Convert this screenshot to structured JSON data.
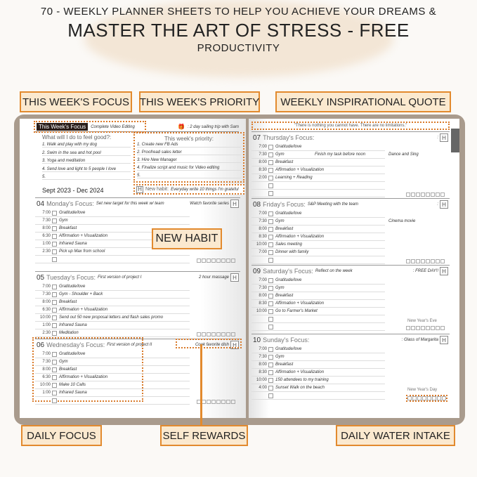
{
  "header": {
    "line1": "70 - WEEKLY PLANNER  SHEETS TO HELP YOU ACHIEVE YOUR DREAMS &",
    "line2": "MASTER THE ART OF STRESS - FREE",
    "line3": "PRODUCTIVITY"
  },
  "callouts": {
    "week_focus": "THIS WEEK'S FOCUS",
    "week_priority": "THIS WEEK'S PRIORITY",
    "quote": "WEEKLY INSPIRATIONAL QUOTE",
    "new_habit": "NEW HABIT",
    "daily_focus": "DAILY FOCUS",
    "self_rewards": "SELF REWARDS",
    "water": "DAILY WATER INTAKE"
  },
  "colors": {
    "accent": "#e28a2e",
    "callout_bg": "#fbe9cf",
    "cover": "#a99b8d"
  },
  "left_page": {
    "week_focus_label": "This Week's Focus",
    "week_focus_value": "Complete Video Editing",
    "week_reward": ": 2 day sailing trip with Sam",
    "feel_good_title": "What will I do to feel good?:",
    "feel_good": [
      "1. Walk and play with my dog",
      "2. Swim in the sea and hot pool",
      "3. Yoga and meditation",
      "4. Send love and light to 5 people I love",
      "5."
    ],
    "priority_title": "This week's priority:",
    "priorities": [
      "1. Create new FB Ads",
      "2. Proofread sales letter",
      "3. Hire New Manager",
      "4. Finalize script and music for Video editing",
      "5."
    ],
    "date_range": "Sept 2023 - Dec 2024",
    "habit_label": "New habit:",
    "habit_value": "Everyday write 10 things I'm grateful"
  },
  "quote": "\"There is nothing you cannot have. There are no limitations.\"",
  "habit_icon": "H",
  "gift_icon": "gift-icon",
  "days": [
    {
      "num": "04",
      "label": "Monday's Focus:",
      "focus": "Set new target for this week w/ team",
      "reward": "Watch favorite series",
      "entries": [
        [
          "7:00",
          "Gratitude/love"
        ],
        [
          "7:30",
          "Gym"
        ],
        [
          "8:00",
          "Breakfast"
        ],
        [
          "6:30",
          "Affirmation + Visualization"
        ],
        [
          "1:00",
          "Infrared Sauna"
        ],
        [
          "2:30",
          "Pick up Max from school"
        ],
        [
          "",
          ""
        ]
      ]
    },
    {
      "num": "05",
      "label": "Tuesday's Focus:",
      "focus": "First version of project I",
      "reward": "2 hour massage",
      "entries": [
        [
          "7:00",
          "Gratitude/love"
        ],
        [
          "7:30",
          "Gym - Shoulder + Back"
        ],
        [
          "8:00",
          "Breakfast"
        ],
        [
          "6:30",
          "Affirmation + Visualization"
        ],
        [
          "10:00",
          "Send out 50 new proposal letters and flash sales promo"
        ],
        [
          "1:00",
          "Infrared Sauna"
        ],
        [
          "2:30",
          "Meditation"
        ]
      ]
    },
    {
      "num": "06",
      "label": "Wednesday's Focus:",
      "focus": "First version of project II",
      "reward": "Cook favorite dish",
      "entries": [
        [
          "7:00",
          "Gratitude/love"
        ],
        [
          "7:30",
          "Gym"
        ],
        [
          "8:00",
          "Breakfast"
        ],
        [
          "6:30",
          "Affirmation + Visualization"
        ],
        [
          "10:00",
          "Make 10 Calls"
        ],
        [
          "1:00",
          "Infrared Sauna"
        ],
        [
          "",
          ""
        ]
      ]
    },
    {
      "num": "07",
      "label": "Thursday's Focus:",
      "focus": "",
      "reward": ":",
      "entries": [
        [
          "7:00",
          "Gratitude/love"
        ],
        [
          "7:30",
          "Gym",
          "Finish my task before noon",
          "Dance and Sing"
        ],
        [
          "8:00",
          "Breakfast"
        ],
        [
          "8:30",
          "Affirmation + Visualization"
        ],
        [
          "2:00",
          "Learning + Reading"
        ],
        [
          "",
          ""
        ],
        [
          "",
          ""
        ]
      ]
    },
    {
      "num": "08",
      "label": "Friday's Focus:",
      "focus": "S&P Meeting with the team",
      "reward": ":",
      "entries": [
        [
          "7:00",
          "Gratitude/love"
        ],
        [
          "7:30",
          "Gym",
          "",
          "Cinema movie"
        ],
        [
          "8:00",
          "Breakfast"
        ],
        [
          "8:30",
          "Affirmation + Visualization"
        ],
        [
          "10:00",
          "Sales meeting"
        ],
        [
          "7:00",
          "Dinner with family"
        ],
        [
          "",
          ""
        ]
      ]
    },
    {
      "num": "09",
      "label": "Saturday's Focus:",
      "focus": "Reflect on the week",
      "reward": ": FREE DAY!!",
      "note": "New Year's Eve",
      "entries": [
        [
          "7:00",
          "Gratitude/love"
        ],
        [
          "7:30",
          "Gym"
        ],
        [
          "8:00",
          "Breakfast"
        ],
        [
          "8:30",
          "Affirmation + Visualization"
        ],
        [
          "10:00",
          "Go to Farmer's Market"
        ],
        [
          "",
          ""
        ],
        [
          "",
          ""
        ]
      ]
    },
    {
      "num": "10",
      "label": "Sunday's Focus:",
      "focus": "",
      "reward": ": Glass of Margarita",
      "note": "New Year's Day",
      "entries": [
        [
          "7:00",
          "Gratitude/love"
        ],
        [
          "7:30",
          "Gym"
        ],
        [
          "8:00",
          "Breakfast"
        ],
        [
          "8:30",
          "Affirmation + Visualization"
        ],
        [
          "10:00",
          "150 attendees to my training"
        ],
        [
          "4:00",
          "Sunset Walk on the beach"
        ],
        [
          "",
          ""
        ]
      ]
    }
  ]
}
